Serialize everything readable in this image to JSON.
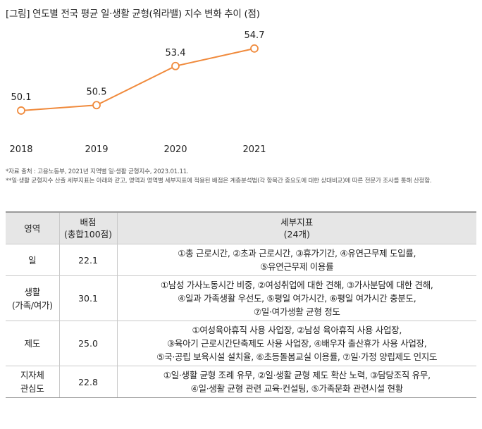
{
  "title": "[그림] 연도별 전국 평균 일·생활 균형(워라밸) 지수 변화 추이 (점)",
  "chart_data": {
    "type": "line",
    "categories": [
      "2018",
      "2019",
      "2020",
      "2021"
    ],
    "values": [
      50.1,
      50.5,
      53.4,
      54.7
    ],
    "value_labels": [
      "50.1",
      "50.5",
      "53.4",
      "54.7"
    ],
    "title": "연도별 전국 평균 일·생활 균형(워라밸) 지수 변화 추이 (점)",
    "ylim": [
      49,
      56
    ],
    "color": "#f08a3c"
  },
  "notes": [
    "*자료 출처 : 고용노동부, 2021년 지역별 일·생활 균형지수, 2023.01.11.",
    "**일·생활 균형지수 산출 세부지표는 아래와 같고, 영역과 영역별 세부지표에 적용된 배점은 계층분석법(각 항목간 중요도에 대한 상대비교)에 따른 전문가 조사를 통해 산정함."
  ],
  "table": {
    "headers": {
      "area": "영역",
      "score_line1": "배점",
      "score_line2": "(총합100점)",
      "detail_line1": "세부지표",
      "detail_line2": "(24개)"
    },
    "rows": [
      {
        "area": [
          "일"
        ],
        "score": "22.1",
        "details": [
          "①총 근로시간, ②초과 근로시간, ③휴가기간, ④유연근무제 도입률,",
          "⑤유연근무제 이용률"
        ]
      },
      {
        "area": [
          "생활",
          "(가족/여가)"
        ],
        "score": "30.1",
        "details": [
          "①남성 가사노동시간 비중, ②여성취업에 대한 견해, ③가사분담에 대한 견해,",
          "④일과 가족생활 우선도, ⑤평일 여가시간, ⑥평일 여가시간 충분도,",
          "⑦일·여가생활 균형 정도"
        ]
      },
      {
        "area": [
          "제도"
        ],
        "score": "25.0",
        "details": [
          "①여성육아휴직 사용 사업장, ②남성 육아휴직 사용 사업장,",
          "③육아기 근로시간단축제도 사용 사업장, ④배우자 출산휴가 사용 사업장,",
          "⑤국·공립 보육시설 설치율, ⑥초등돌봄교실 이용률, ⑦일·가정 양립제도 인지도"
        ]
      },
      {
        "area": [
          "지자체",
          "관심도"
        ],
        "score": "22.8",
        "details": [
          "①일·생활 균형 조례 유무, ②일·생활 균형 제도 확산 노력, ③담당조직 유무,",
          "④일·생활 균형 관련 교육·컨설팅, ⑤가족문화 관련시설 현황"
        ]
      }
    ]
  }
}
